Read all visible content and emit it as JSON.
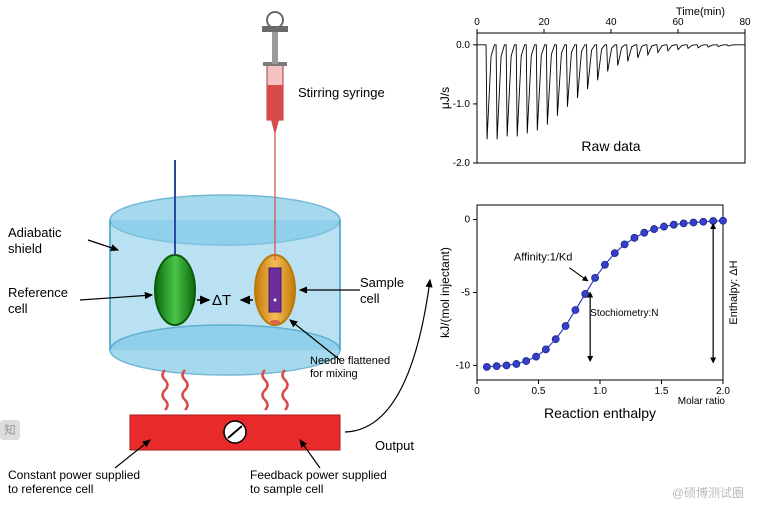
{
  "diagram": {
    "labels": {
      "stirring_syringe": "Stirring syringe",
      "adiabatic_shield": "Adiabatic\nshield",
      "reference_cell": "Reference\ncell",
      "sample_cell": "Sample\ncell",
      "delta_t": "ΔT",
      "needle_note": "Needle flattened\nfor mixing",
      "constant_power": "Constant power supplied\nto reference cell",
      "feedback_power": "Feedback power supplied\nto sample cell",
      "output": "Output"
    },
    "colors": {
      "shield": "#7fc9e8",
      "shield_stroke": "#3a9bc4",
      "ref_cell": "#1a8f1a",
      "ref_cell_light": "#4bc44b",
      "sample_cell": "#e89a1a",
      "sample_cell_light": "#f5bb55",
      "sample_inner": "#6b2e9b",
      "syringe_liquid": "#d94a4a",
      "syringe_body": "#c2e8c2",
      "coil": "#d94a4a",
      "heater": "#e82a2a",
      "arrow": "#000000"
    }
  },
  "raw_chart": {
    "type": "line",
    "title": "Raw data",
    "x_label": "Time(min)",
    "y_label": "μJ/s",
    "xlim": [
      0,
      80
    ],
    "ylim": [
      -2.0,
      0.2
    ],
    "x_ticks": [
      0,
      20,
      40,
      60,
      80
    ],
    "y_ticks": [
      0,
      -1.0,
      -2.0
    ],
    "peak_times": [
      3,
      6,
      9,
      12,
      15,
      18,
      21,
      24,
      27,
      30,
      33,
      36,
      39,
      42,
      45,
      48,
      51,
      54,
      57,
      60,
      63,
      66,
      69,
      72,
      75
    ],
    "peak_depths": [
      -1.6,
      -1.6,
      -1.55,
      -1.55,
      -1.5,
      -1.45,
      -1.35,
      -1.2,
      -1.05,
      -0.9,
      -0.75,
      -0.6,
      -0.45,
      -0.35,
      -0.28,
      -0.22,
      -0.17,
      -0.13,
      -0.1,
      -0.08,
      -0.06,
      -0.05,
      -0.04,
      -0.03,
      -0.02
    ],
    "colors": {
      "line": "#000000",
      "bg": "#ffffff",
      "axis": "#000000"
    }
  },
  "enthalpy_chart": {
    "type": "scatter-line",
    "title": "Reaction enthalpy",
    "x_label": "Molar ratio",
    "y_label": "kJ/(mol injectant)",
    "xlim": [
      0,
      2.0
    ],
    "ylim": [
      -11,
      1
    ],
    "x_ticks": [
      0,
      0.5,
      1.0,
      1.5,
      2.0
    ],
    "y_ticks": [
      0,
      -5,
      -10
    ],
    "annotations": {
      "affinity": "Affinity:1/Kd",
      "stoichiometry": "Stochiometry:N",
      "enthalpy": "Enthalpy: ΔH"
    },
    "molar_ratio": [
      0.08,
      0.16,
      0.24,
      0.32,
      0.4,
      0.48,
      0.56,
      0.64,
      0.72,
      0.8,
      0.88,
      0.96,
      1.04,
      1.12,
      1.2,
      1.28,
      1.36,
      1.44,
      1.52,
      1.6,
      1.68,
      1.76,
      1.84,
      1.92,
      2.0
    ],
    "enthalpy_values": [
      -10.1,
      -10.05,
      -10.0,
      -9.9,
      -9.7,
      -9.4,
      -8.9,
      -8.2,
      -7.3,
      -6.2,
      -5.1,
      -4.0,
      -3.1,
      -2.3,
      -1.7,
      -1.25,
      -0.9,
      -0.65,
      -0.48,
      -0.35,
      -0.26,
      -0.2,
      -0.15,
      -0.1,
      -0.08
    ],
    "colors": {
      "point_fill": "#3440c8",
      "point_stroke": "#1a2488",
      "line": "#3440c8",
      "bg": "#ffffff",
      "axis": "#000000"
    }
  },
  "watermark": "@硕博测试圈"
}
